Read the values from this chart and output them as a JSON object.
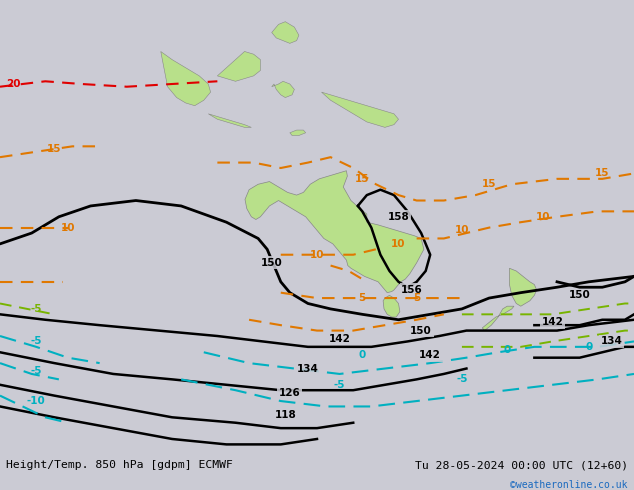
{
  "title_left": "Height/Temp. 850 hPa [gdpm] ECMWF",
  "title_right": "Tu 28-05-2024 00:00 UTC (12+60)",
  "copyright": "©weatheronline.co.uk",
  "bg_color": "#cbcbd4",
  "land_color": "#b8e08a",
  "ocean_color": "#cbcbd4",
  "coast_color": "#888888",
  "font_color_left": "#000000",
  "font_color_right": "#000000",
  "font_color_copy": "#1a6abf",
  "black_contour": "#000000",
  "orange_contour": "#e07800",
  "cyan_contour": "#00b0c0",
  "green_contour": "#78b400",
  "red_contour": "#e00000",
  "bottom_bar_color": "#e0e0e0",
  "map_extent": [
    60,
    200,
    -68,
    15
  ],
  "fig_width": 6.34,
  "fig_height": 4.9,
  "dpi": 100
}
